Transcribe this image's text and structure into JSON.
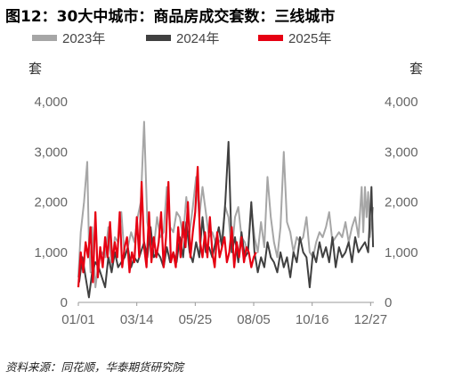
{
  "title": "图12：30大中城市：商品房成交套数：三线城市",
  "source": "资料来源：同花顺，华泰期货研究院",
  "chart_data": {
    "type": "line",
    "unit_left": "套",
    "unit_right": "套",
    "ylim": [
      0,
      4000
    ],
    "yticks": [
      "0",
      "1,000",
      "2,000",
      "3,000",
      "4,000"
    ],
    "xlim": [
      1,
      365
    ],
    "xticks": [
      {
        "day": 1,
        "label": "01/01"
      },
      {
        "day": 73,
        "label": "03/14"
      },
      {
        "day": 145,
        "label": "05/25"
      },
      {
        "day": 217,
        "label": "08/05"
      },
      {
        "day": 289,
        "label": "10/16"
      },
      {
        "day": 361,
        "label": "12/27"
      }
    ],
    "legend_position": "top",
    "series": [
      {
        "name": "2023年",
        "color": "#a6a6a6",
        "x": [
          1,
          4,
          8,
          12,
          14,
          16,
          18,
          22,
          26,
          30,
          34,
          38,
          42,
          46,
          50,
          54,
          58,
          62,
          66,
          70,
          74,
          78,
          82,
          86,
          90,
          94,
          98,
          102,
          106,
          110,
          114,
          118,
          122,
          126,
          130,
          134,
          138,
          142,
          146,
          150,
          154,
          158,
          162,
          166,
          170,
          174,
          178,
          182,
          186,
          190,
          194,
          198,
          202,
          206,
          210,
          214,
          218,
          222,
          226,
          230,
          234,
          238,
          242,
          246,
          250,
          254,
          258,
          262,
          266,
          270,
          274,
          278,
          282,
          286,
          290,
          294,
          298,
          302,
          306,
          310,
          314,
          318,
          322,
          326,
          330,
          334,
          338,
          342,
          346,
          350,
          352,
          354,
          356,
          358,
          360,
          362,
          364
        ],
        "y": [
          500,
          1400,
          2000,
          2800,
          1200,
          600,
          1500,
          300,
          800,
          1000,
          900,
          1500,
          700,
          1300,
          1200,
          1800,
          900,
          1100,
          1400,
          1200,
          1700,
          2000,
          3600,
          1600,
          1200,
          1100,
          1700,
          1300,
          1400,
          2300,
          1500,
          1400,
          1800,
          1700,
          1300,
          2100,
          1400,
          1900,
          2500,
          1700,
          2300,
          1800,
          1300,
          1400,
          1200,
          1200,
          1300,
          1900,
          1700,
          1000,
          1700,
          1900,
          1300,
          1200,
          1000,
          1900,
          1300,
          1000,
          1600,
          1100,
          2500,
          1700,
          1200,
          900,
          1500,
          3000,
          1600,
          1400,
          1000,
          1300,
          1200,
          1300,
          1700,
          1000,
          900,
          1200,
          1400,
          1300,
          1500,
          1800,
          1200,
          1300,
          1400,
          1300,
          1600,
          1200,
          1500,
          1700,
          1300,
          2300,
          1400,
          2300,
          1700,
          2200,
          1300,
          1600,
          1900
        ]
      },
      {
        "name": "2024年",
        "color": "#404040",
        "x": [
          2,
          6,
          10,
          14,
          18,
          22,
          26,
          30,
          34,
          38,
          42,
          46,
          50,
          54,
          58,
          62,
          66,
          70,
          74,
          78,
          82,
          86,
          90,
          94,
          98,
          102,
          106,
          110,
          114,
          118,
          122,
          126,
          130,
          134,
          138,
          142,
          146,
          150,
          154,
          158,
          162,
          166,
          170,
          174,
          178,
          182,
          186,
          190,
          194,
          198,
          202,
          206,
          210,
          214,
          218,
          222,
          226,
          230,
          234,
          238,
          242,
          246,
          250,
          254,
          258,
          262,
          266,
          270,
          274,
          278,
          282,
          286,
          290,
          294,
          298,
          302,
          306,
          310,
          314,
          318,
          322,
          326,
          330,
          334,
          338,
          342,
          346,
          350,
          354,
          358,
          362,
          364
        ],
        "y": [
          400,
          900,
          500,
          100,
          600,
          800,
          700,
          500,
          300,
          900,
          600,
          1000,
          700,
          800,
          900,
          1100,
          700,
          900,
          800,
          1000,
          1200,
          900,
          1500,
          900,
          1000,
          900,
          700,
          1100,
          800,
          1000,
          800,
          1300,
          900,
          1600,
          1000,
          800,
          1200,
          900,
          1700,
          1000,
          1100,
          900,
          1200,
          1500,
          1100,
          2000,
          3200,
          1000,
          1300,
          800,
          1400,
          900,
          1000,
          2000,
          1000,
          600,
          900,
          700,
          1200,
          900,
          800,
          600,
          1000,
          700,
          900,
          500,
          1000,
          800,
          1300,
          1000,
          900,
          300,
          1000,
          800,
          1200,
          900,
          1100,
          800,
          1300,
          700,
          1100,
          900,
          1000,
          1200,
          800,
          1300,
          1000,
          1100,
          1200,
          1000,
          2300,
          1100
        ]
      },
      {
        "name": "2025年",
        "color": "#e60012",
        "x": [
          1,
          4,
          7,
          10,
          13,
          16,
          19,
          22,
          25,
          28,
          31,
          34,
          37,
          40,
          43,
          46,
          49,
          52,
          55,
          58,
          61,
          64,
          67,
          70,
          73,
          76,
          79,
          82,
          85,
          88,
          91,
          94,
          97,
          100,
          103,
          106,
          109,
          112,
          115,
          118,
          121,
          124,
          127,
          130,
          133,
          136,
          139,
          142,
          145,
          148,
          151,
          154,
          157,
          160,
          163,
          166,
          169,
          172,
          175,
          178,
          181,
          184,
          187,
          190,
          193,
          196,
          199,
          202,
          205,
          208,
          211,
          214,
          217,
          220
        ],
        "y": [
          300,
          1000,
          600,
          1200,
          900,
          1500,
          400,
          1800,
          500,
          1100,
          700,
          1300,
          900,
          1600,
          800,
          1200,
          900,
          1800,
          700,
          1100,
          1300,
          600,
          1000,
          800,
          1700,
          900,
          2400,
          1100,
          700,
          1800,
          800,
          1300,
          900,
          1200,
          1800,
          700,
          1300,
          2400,
          800,
          1000,
          700,
          1500,
          900,
          1600,
          1100,
          2000,
          900,
          1400,
          1800,
          2700,
          1200,
          900,
          1400,
          900,
          1700,
          1000,
          700,
          1400,
          900,
          1100,
          1300,
          800,
          1000,
          1500,
          700,
          1200,
          900,
          1300,
          800,
          1100,
          1000,
          700,
          900,
          1000
        ]
      }
    ]
  }
}
